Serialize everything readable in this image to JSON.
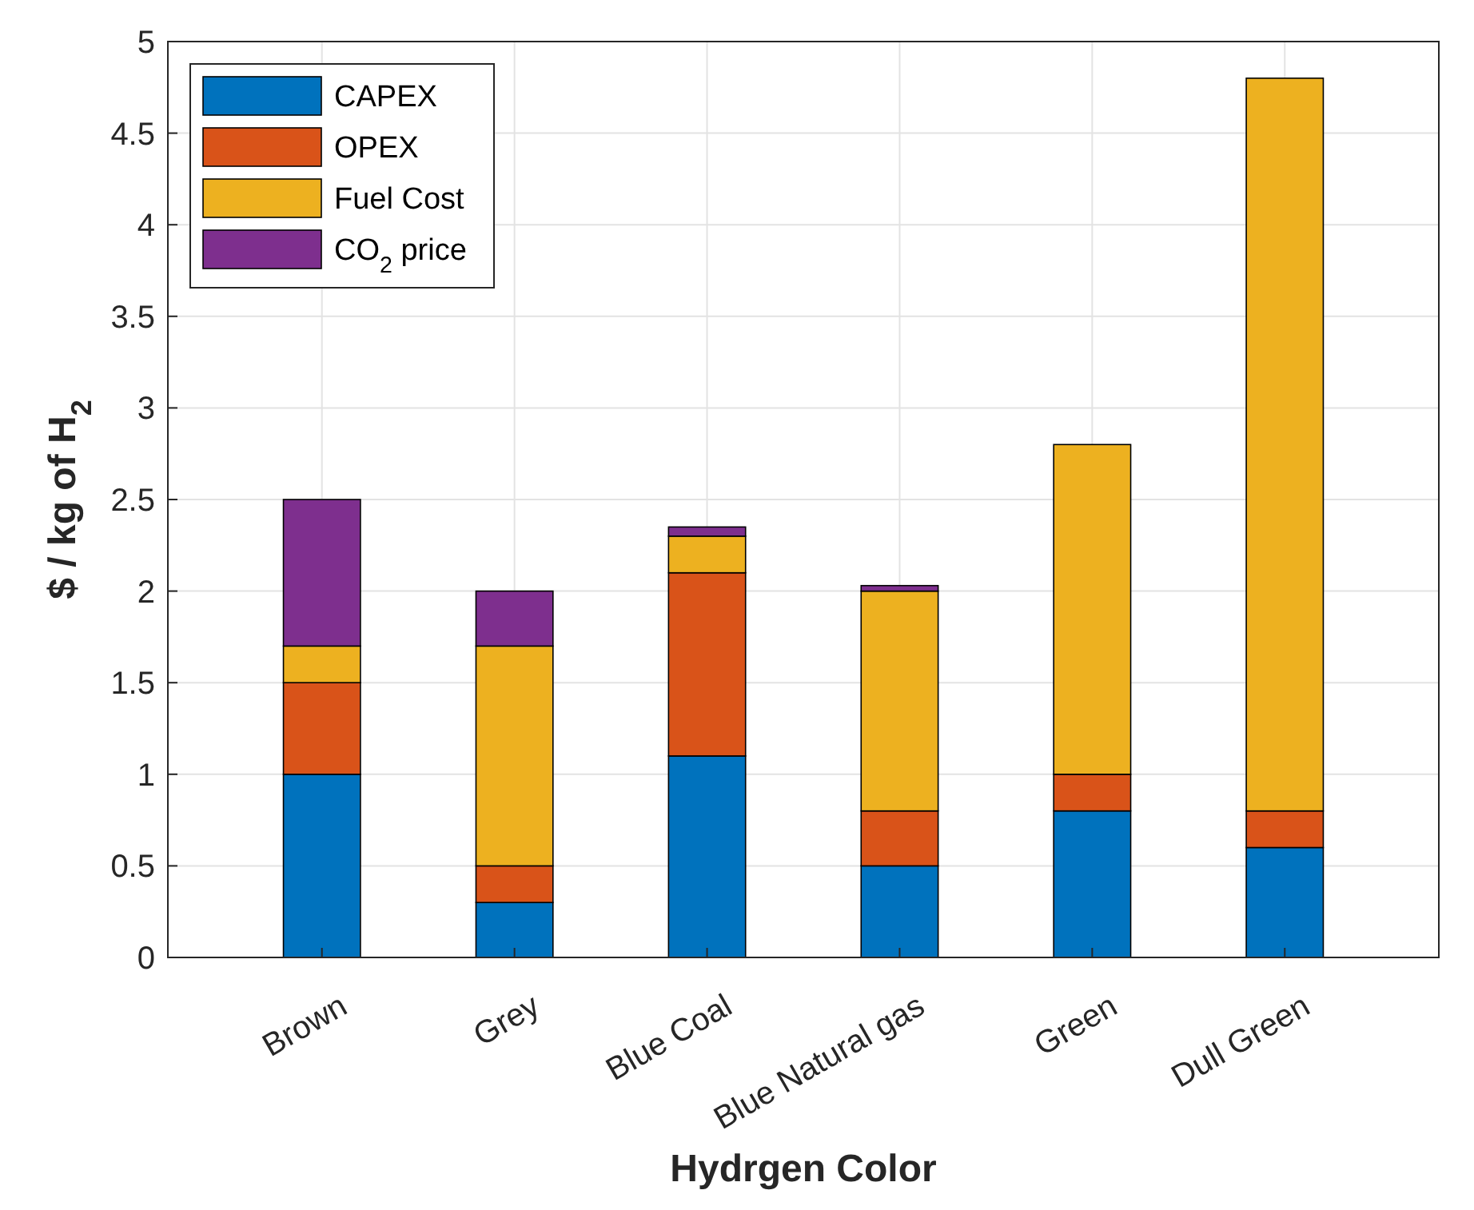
{
  "chart_data": {
    "type": "bar",
    "stacked": true,
    "xlabel": "Hydrgen Color",
    "ylabel": "$ / kg of H$_{2}$",
    "categories": [
      "Brown",
      "Grey",
      "Blue Coal",
      "Blue Natural gas",
      "Green",
      "Dull Green"
    ],
    "series": [
      {
        "name": "CAPEX",
        "color": "#0072bd",
        "values": [
          1.0,
          0.3,
          1.1,
          0.5,
          0.8,
          0.6
        ]
      },
      {
        "name": "OPEX",
        "color": "#d95319",
        "values": [
          0.5,
          0.2,
          1.0,
          0.3,
          0.2,
          0.2
        ]
      },
      {
        "name": "Fuel Cost",
        "color": "#edb120",
        "values": [
          0.2,
          1.2,
          0.2,
          1.2,
          1.8,
          4.0
        ]
      },
      {
        "name": "CO$_{2}$ price",
        "color": "#7e2f8e",
        "values": [
          0.8,
          0.3,
          0.05,
          0.03,
          0,
          0
        ]
      }
    ],
    "ylim": [
      0,
      5
    ],
    "yticks": [
      0,
      0.5,
      1,
      1.5,
      2,
      2.5,
      3,
      3.5,
      4,
      4.5,
      5
    ],
    "grid": true,
    "legend": "top left"
  }
}
